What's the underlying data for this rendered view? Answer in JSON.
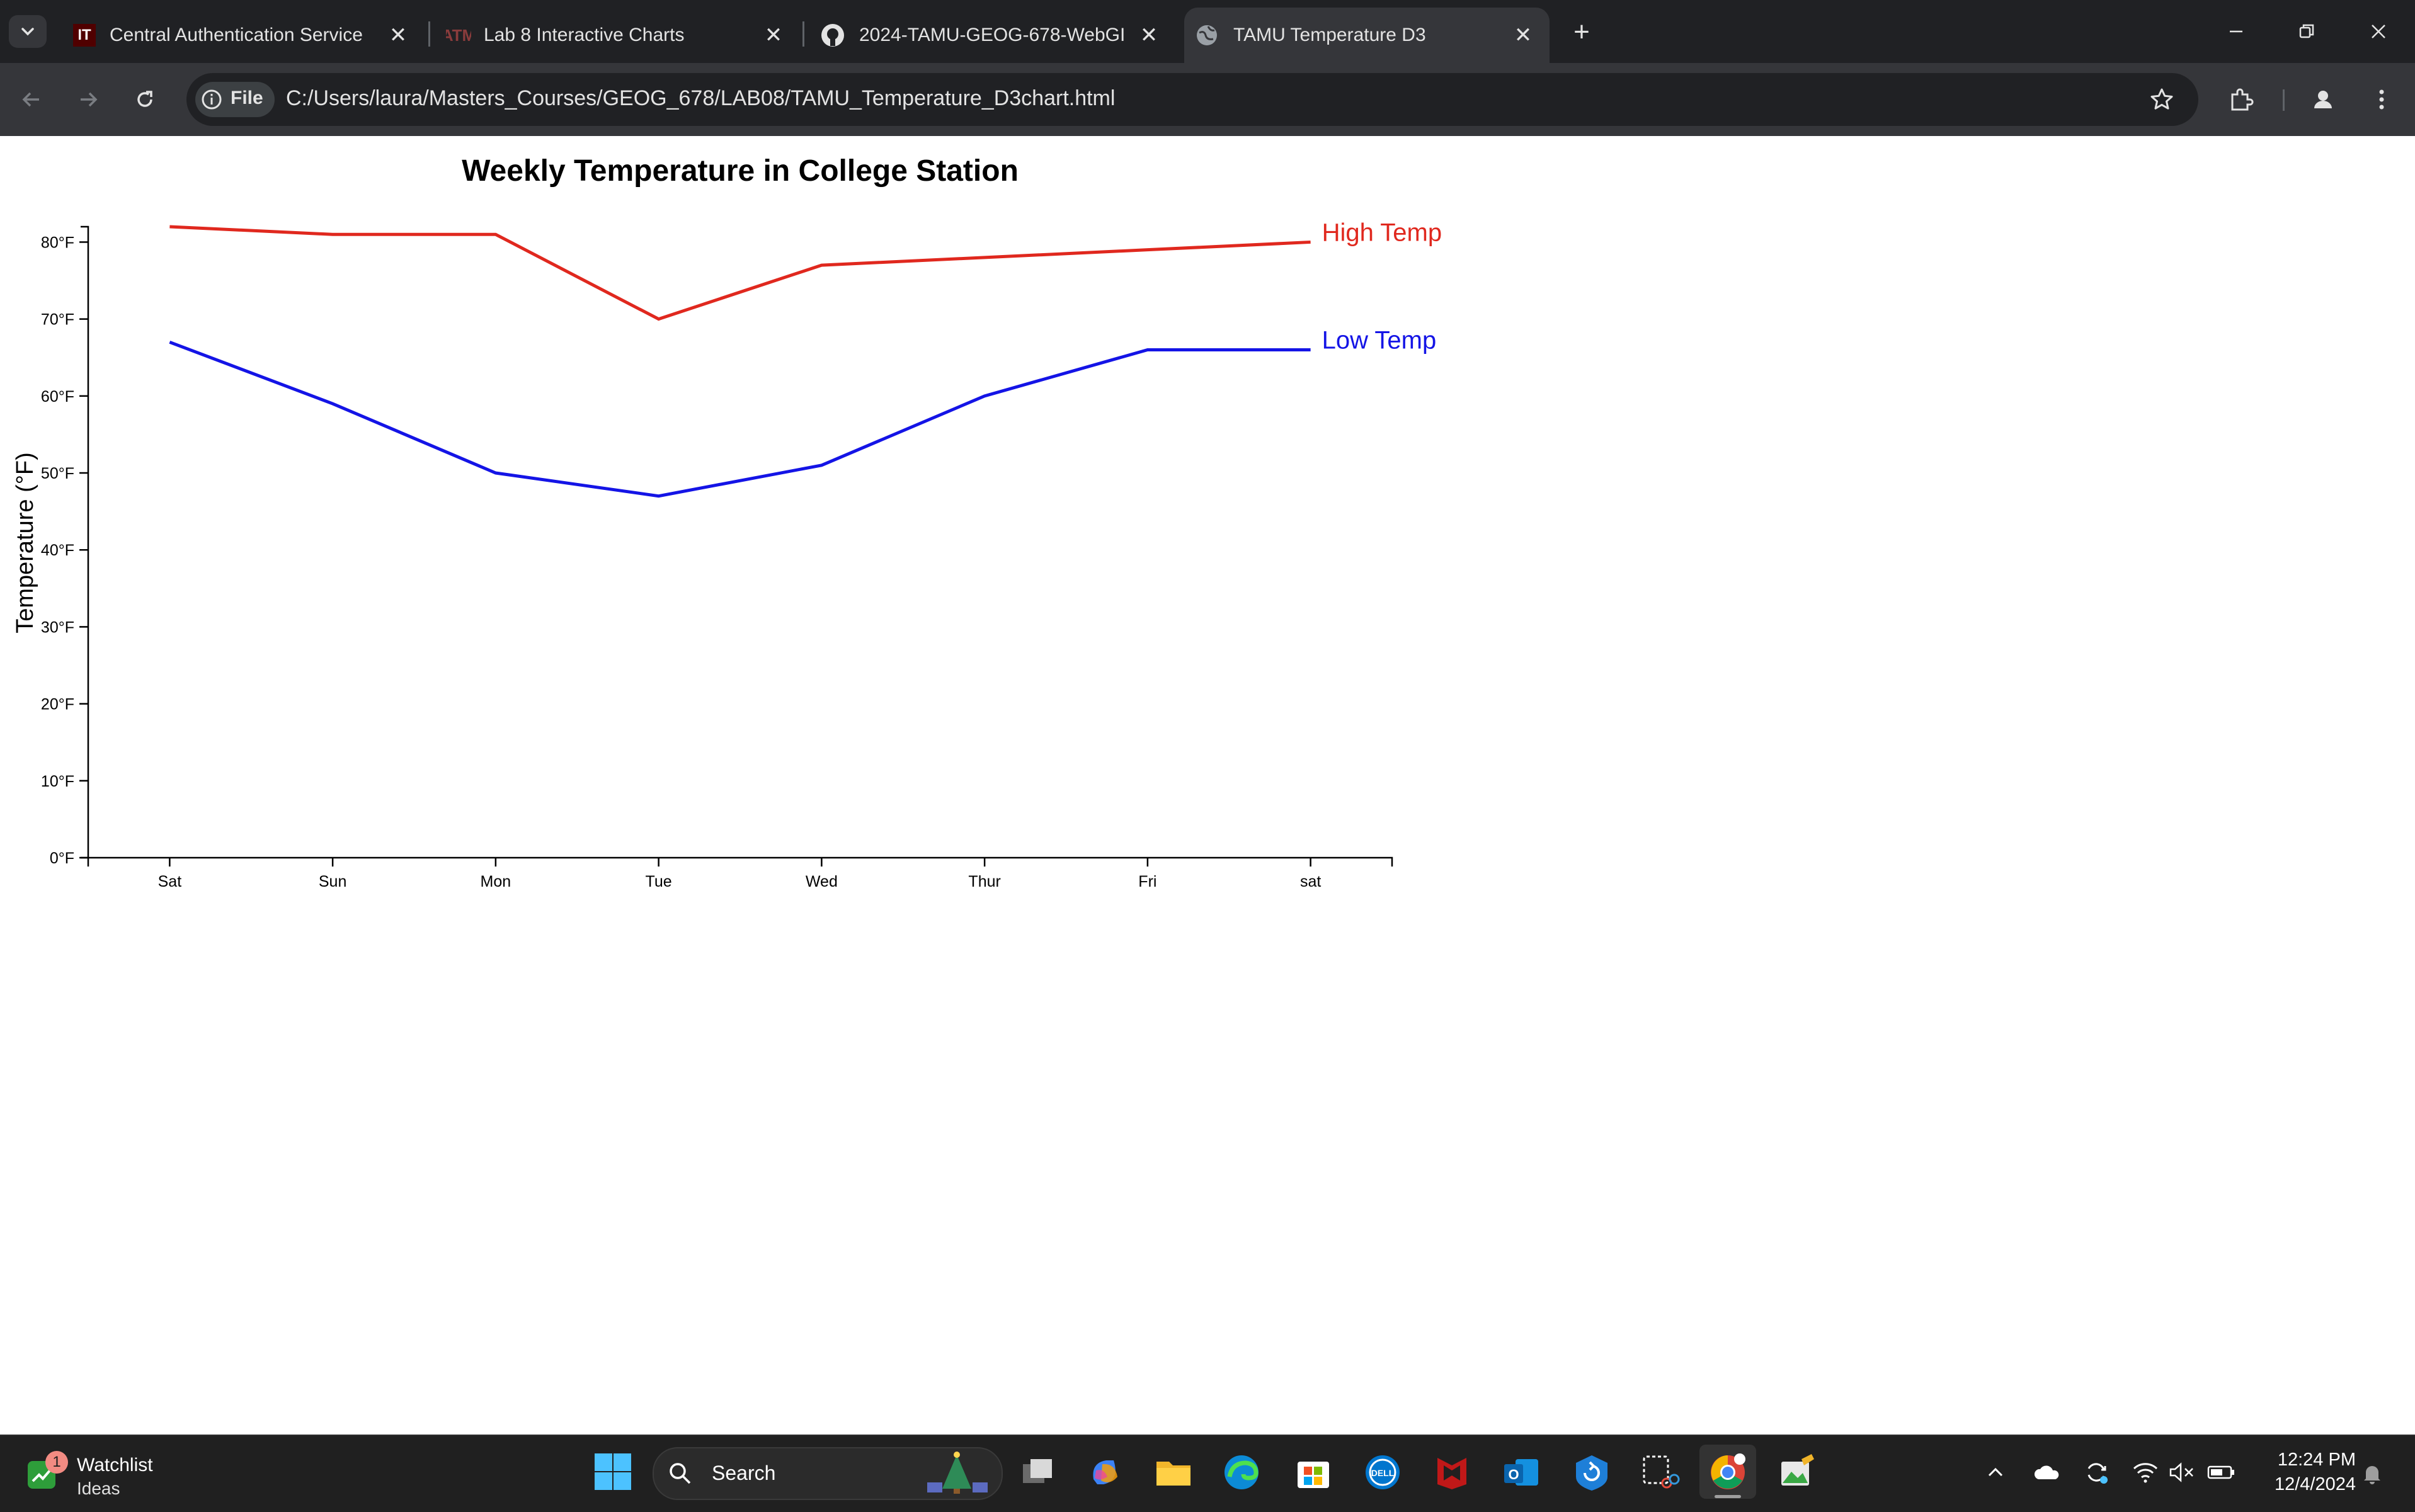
{
  "browser": {
    "tabs": [
      {
        "label": "Central Authentication Service",
        "favicon": "IT",
        "active": false
      },
      {
        "label": "Lab 8 Interactive Charts",
        "favicon": "tamu-logo",
        "active": false
      },
      {
        "label": "2024-TAMU-GEOG-678-WebGIS",
        "favicon": "github-icon",
        "active": false
      },
      {
        "label": "TAMU Temperature D3",
        "favicon": "globe-icon",
        "active": true
      }
    ],
    "address": {
      "chip_label": "File",
      "url": "C:/Users/laura/Masters_Courses/GEOG_678/LAB08/TAMU_Temperature_D3chart.html"
    }
  },
  "chart_data": {
    "type": "line",
    "title": "Weekly Temperature in College Station",
    "ylabel": "Temperature (°F)",
    "xlabel": "",
    "categories": [
      "Sat",
      "Sun",
      "Mon",
      "Tue",
      "Wed",
      "Thur",
      "Fri",
      "sat"
    ],
    "y_ticks": [
      "0°F",
      "10°F",
      "20°F",
      "30°F",
      "40°F",
      "50°F",
      "60°F",
      "70°F",
      "80°F"
    ],
    "ylim": [
      0,
      82
    ],
    "grid": false,
    "series": [
      {
        "name": "High Temp",
        "color": "#e0281e",
        "values": [
          82,
          81,
          81,
          70,
          77,
          78,
          79,
          80
        ]
      },
      {
        "name": "Low Temp",
        "color": "#1414e6",
        "values": [
          67,
          59,
          50,
          47,
          51,
          60,
          66,
          66
        ]
      }
    ]
  },
  "taskbar": {
    "widget": {
      "badge": "1",
      "title": "Watchlist",
      "subtitle": "Ideas"
    },
    "search_label": "Search",
    "clock": {
      "time": "12:24 PM",
      "date": "12/4/2024"
    }
  }
}
